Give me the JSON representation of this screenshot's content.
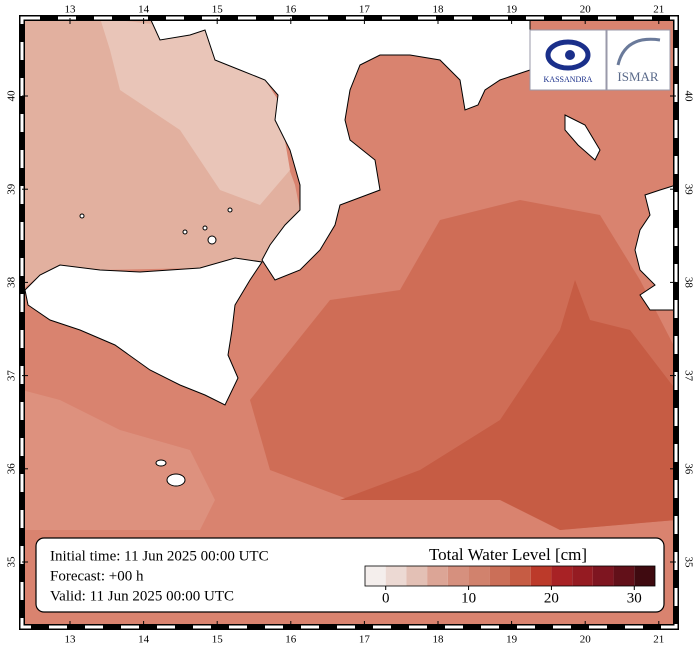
{
  "map": {
    "lon_ticks": [
      13,
      14,
      15,
      16,
      17,
      18,
      19,
      20,
      21
    ],
    "lat_ticks": [
      35,
      36,
      37,
      38,
      39,
      40
    ],
    "info": [
      "Initial time: 11 Jun 2025 00:00 UTC",
      "Forecast: +00 h",
      "Valid: 11 Jun 2025 00:00 UTC"
    ],
    "logos": [
      "KASSANDRA",
      "ISMAR"
    ]
  },
  "colorbar": {
    "title": "Total Water Level [cm]",
    "range": [
      -2.5,
      32.5
    ],
    "ticks": [
      0,
      10,
      20,
      30
    ],
    "colors": [
      "#f4eeec",
      "#ecd9d3",
      "#e3c0b5",
      "#dca596",
      "#d6907e",
      "#d1826d",
      "#cb6f58",
      "#c65c44",
      "#bc3a2a",
      "#a82225",
      "#951b22",
      "#7e1520",
      "#621019",
      "#3f0a10"
    ]
  }
}
